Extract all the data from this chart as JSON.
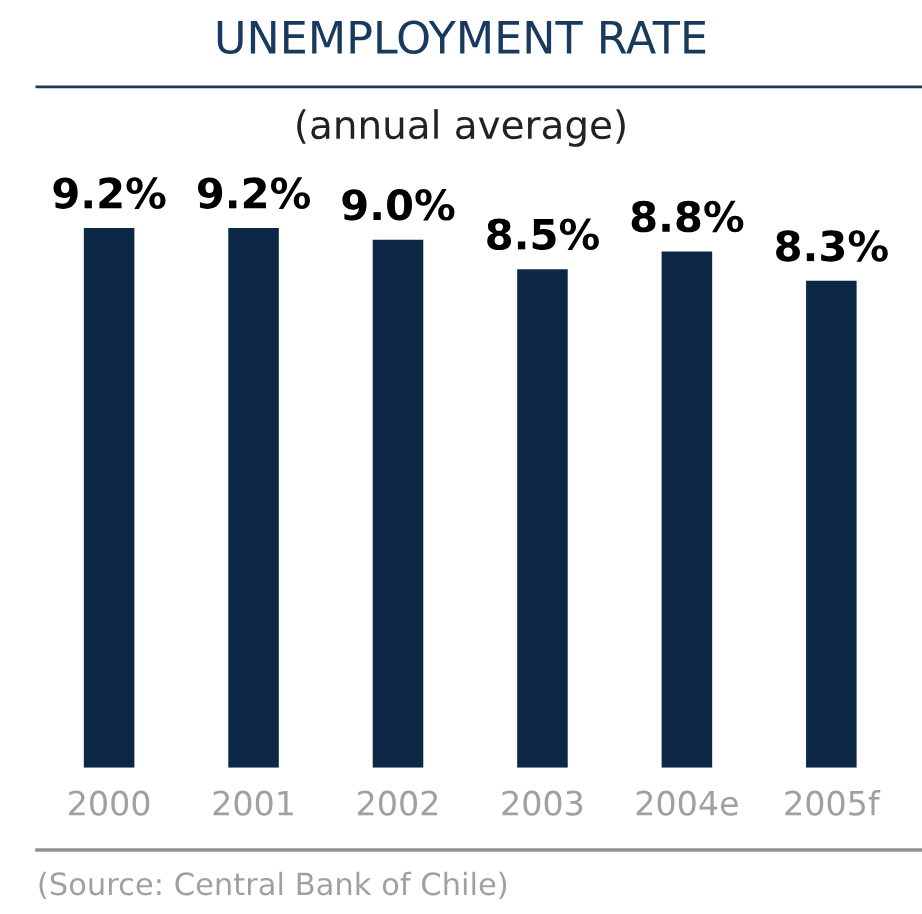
{
  "chart_data": {
    "type": "bar",
    "title": "UNEMPLOYMENT RATE",
    "subtitle": "(annual average)",
    "categories": [
      "2000",
      "2001",
      "2002",
      "2003",
      "2004e",
      "2005f"
    ],
    "values": [
      9.2,
      9.2,
      9.0,
      8.5,
      8.8,
      8.3
    ],
    "value_labels": [
      "9.2%",
      "9.2%",
      "9.0%",
      "8.5%",
      "8.8%",
      "8.3%"
    ],
    "color": "#0d2846",
    "grid": false,
    "legend": false,
    "annotations": [
      "(Source: Central Bank of Chile)"
    ]
  }
}
